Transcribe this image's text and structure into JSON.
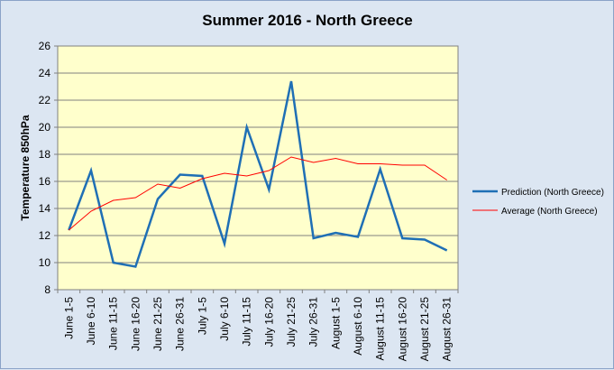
{
  "chart_data": {
    "type": "line",
    "title": "Summer 2016 - North Greece",
    "ylabel": "Temperature 850hPa",
    "xlabel": "",
    "ylim": [
      8,
      26
    ],
    "yticks": [
      8,
      10,
      12,
      14,
      16,
      18,
      20,
      22,
      24,
      26
    ],
    "grid": "horizontal",
    "legend_position": "right",
    "categories": [
      "June 1-5",
      "June 6-10",
      "June 11-15",
      "June 16-20",
      "June 21-25",
      "June 26-31",
      "July 1-5",
      "July 6-10",
      "July 11-15",
      "July 16-20",
      "July 21-25",
      "July 26-31",
      "August 1-5",
      "August 6-10",
      "August 11-15",
      "August 16-20",
      "August 21-25",
      "August 26-31"
    ],
    "series": [
      {
        "name": "Prediction (North Greece)",
        "color": "#1f6fb5",
        "values": [
          12.4,
          16.8,
          10.0,
          9.7,
          14.7,
          16.5,
          16.4,
          11.4,
          20.0,
          15.4,
          23.4,
          11.8,
          12.2,
          11.9,
          16.9,
          11.8,
          11.7,
          10.9
        ]
      },
      {
        "name": "Average (North Greece)",
        "color": "#ff0000",
        "values": [
          12.4,
          13.8,
          14.6,
          14.8,
          15.8,
          15.5,
          16.2,
          16.6,
          16.4,
          16.8,
          17.8,
          17.4,
          17.7,
          17.3,
          17.3,
          17.2,
          17.2,
          16.1
        ]
      }
    ],
    "colors": {
      "plot_background": "#ffffcc",
      "chart_background": "#dce6f2",
      "gridline": "#808080"
    }
  }
}
